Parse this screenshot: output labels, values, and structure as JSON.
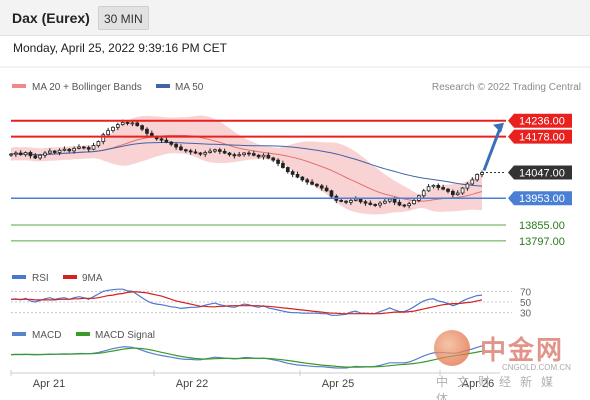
{
  "header": {
    "title": "Dax (Eurex)",
    "timeframe": "30 MIN"
  },
  "datetime": "Monday, April 25, 2022 9:39:16 PM CET",
  "credit": "Research © 2022 Trading Central",
  "legend": {
    "ma": "MA 20 + Bollinger Bands",
    "ma50": "MA 50",
    "rsi": "RSI",
    "rsi_ma": "9MA",
    "macd": "MACD",
    "macd_signal": "MACD Signal"
  },
  "watermark": {
    "cn": "中金网",
    "url": "CNGOLD.COM.CN",
    "sub": "中文财经新媒体"
  },
  "colors": {
    "red_level": "#e8201e",
    "blue_level": "#4a7fd6",
    "green_level": "#5aa346",
    "current": "#333333",
    "bands": "#f7c4c4",
    "ma": "#e07070",
    "ma50": "#3f64a8",
    "rsi": "#4a78d0",
    "rsi_ma": "#d62020",
    "macd": "#5a80d0",
    "macd_signal": "#3a9a2a",
    "arrow": "#3c6fb8"
  },
  "chart_data": {
    "type": "candlestick",
    "x_labels": [
      "Apr 21",
      "Apr 22",
      "Apr 25",
      "Apr 26"
    ],
    "y_range": [
      13720,
      14330
    ],
    "levels": [
      {
        "value": "14236.00",
        "kind": "resistance"
      },
      {
        "value": "14178.00",
        "kind": "resistance"
      },
      {
        "value": "14047.00",
        "kind": "current"
      },
      {
        "value": "13953.00",
        "kind": "pivot"
      },
      {
        "value": "13855.00",
        "kind": "support"
      },
      {
        "value": "13797.00",
        "kind": "support"
      }
    ],
    "close": [
      14114,
      14118,
      14112,
      14120,
      14108,
      14100,
      14110,
      14118,
      14125,
      14120,
      14128,
      14132,
      14126,
      14135,
      14140,
      14138,
      14132,
      14145,
      14160,
      14185,
      14200,
      14212,
      14222,
      14230,
      14226,
      14228,
      14218,
      14205,
      14190,
      14178,
      14170,
      14165,
      14158,
      14150,
      14140,
      14130,
      14126,
      14122,
      14118,
      14114,
      14120,
      14125,
      14130,
      14124,
      14118,
      14112,
      14108,
      14112,
      14118,
      14116,
      14110,
      14104,
      14110,
      14100,
      14092,
      14080,
      14065,
      14050,
      14040,
      14030,
      14020,
      14012,
      14004,
      13998,
      13990,
      13980,
      13960,
      13945,
      13942,
      13938,
      13945,
      13950,
      13940,
      13935,
      13930,
      13928,
      13935,
      13942,
      13950,
      13938,
      13928,
      13926,
      13933,
      13945,
      13962,
      13980,
      13995,
      14000,
      13992,
      13986,
      13978,
      13966,
      13972,
      13990,
      14005,
      14020,
      14040,
      14047
    ],
    "rsi_ticks": [
      "70",
      "50",
      "30"
    ],
    "rsi_range": [
      20,
      80
    ],
    "rsi": [
      55,
      56,
      54,
      57,
      52,
      50,
      53,
      56,
      58,
      55,
      57,
      58,
      55,
      58,
      60,
      58,
      55,
      60,
      65,
      70,
      72,
      73,
      74,
      74,
      71,
      70,
      64,
      58,
      52,
      48,
      46,
      45,
      43,
      41,
      40,
      38,
      39,
      40,
      40,
      41,
      44,
      46,
      48,
      45,
      43,
      41,
      40,
      43,
      46,
      45,
      42,
      40,
      43,
      39,
      37,
      35,
      33,
      31,
      30,
      30,
      29,
      29,
      29,
      29,
      28,
      28,
      25,
      25,
      26,
      27,
      31,
      33,
      29,
      29,
      28,
      28,
      32,
      35,
      39,
      35,
      32,
      32,
      36,
      41,
      47,
      52,
      55,
      56,
      52,
      50,
      47,
      43,
      46,
      52,
      56,
      59,
      62,
      63
    ],
    "rsi_ma": [
      55,
      55,
      55,
      55,
      55,
      54,
      54,
      54,
      54,
      54,
      55,
      55,
      55,
      56,
      56,
      57,
      57,
      57,
      58,
      60,
      62,
      63,
      65,
      66,
      68,
      69,
      69,
      68,
      67,
      65,
      63,
      61,
      58,
      55,
      52,
      50,
      48,
      46,
      44,
      42,
      42,
      41,
      41,
      42,
      42,
      43,
      43,
      43,
      43,
      43,
      43,
      43,
      42,
      42,
      41,
      40,
      39,
      38,
      37,
      36,
      35,
      34,
      33,
      32,
      31,
      30,
      29,
      29,
      28,
      28,
      28,
      28,
      28,
      28,
      28,
      28,
      28,
      29,
      30,
      31,
      31,
      31,
      32,
      33,
      35,
      37,
      39,
      41,
      43,
      45,
      46,
      47,
      47,
      48,
      49,
      50,
      52,
      54
    ],
    "macd": [
      0,
      0.5,
      0.3,
      0.6,
      0,
      -0.5,
      0,
      0.6,
      1.2,
      0.9,
      1.4,
      1.8,
      1.5,
      2,
      2.6,
      2.5,
      2,
      3.2,
      5,
      8,
      11,
      14,
      16,
      18,
      18,
      17,
      14,
      10,
      6,
      3,
      0,
      -2,
      -4,
      -6,
      -8,
      -10,
      -11,
      -11,
      -12,
      -12,
      -10,
      -8,
      -6,
      -7,
      -8,
      -9,
      -10,
      -9,
      -7,
      -7,
      -8,
      -9,
      -8,
      -10,
      -12,
      -14,
      -17,
      -20,
      -22,
      -24,
      -25,
      -26,
      -27,
      -28,
      -28,
      -29,
      -30,
      -31,
      -31,
      -31,
      -29,
      -27,
      -28,
      -28,
      -28,
      -27,
      -25,
      -22,
      -19,
      -19,
      -19,
      -19,
      -17,
      -13,
      -8,
      -3,
      1,
      4,
      5,
      5,
      4,
      3,
      4,
      7,
      10,
      13,
      17,
      20
    ],
    "macd_signal": [
      0,
      0.2,
      0.4,
      0.5,
      0.5,
      0.3,
      0.3,
      0.4,
      0.6,
      0.7,
      0.9,
      1.2,
      1.3,
      1.5,
      1.8,
      2,
      2.1,
      2.4,
      3,
      4.5,
      6.5,
      8.5,
      10.5,
      12.5,
      14,
      15,
      15,
      14,
      12.5,
      10.5,
      8,
      5.5,
      3,
      0.5,
      -2,
      -4,
      -6,
      -7.5,
      -9,
      -10,
      -10.5,
      -10,
      -9.5,
      -9,
      -8.8,
      -8.8,
      -9,
      -9,
      -8.8,
      -8.5,
      -8.4,
      -8.5,
      -8.6,
      -9,
      -9.8,
      -10.8,
      -12,
      -13.5,
      -15,
      -16.8,
      -18.5,
      -20,
      -21.5,
      -23,
      -24.2,
      -25.2,
      -26.2,
      -27.2,
      -28,
      -28.8,
      -29,
      -29,
      -28.8,
      -28.5,
      -28.4,
      -28.2,
      -27.6,
      -26.8,
      -25.6,
      -24.4,
      -23.4,
      -22.6,
      -21.8,
      -20.6,
      -19,
      -17,
      -14.8,
      -12.2,
      -9.6,
      -7.2,
      -5,
      -3.2,
      -1.6,
      0.2,
      2,
      3.8,
      5.8,
      8
    ]
  }
}
